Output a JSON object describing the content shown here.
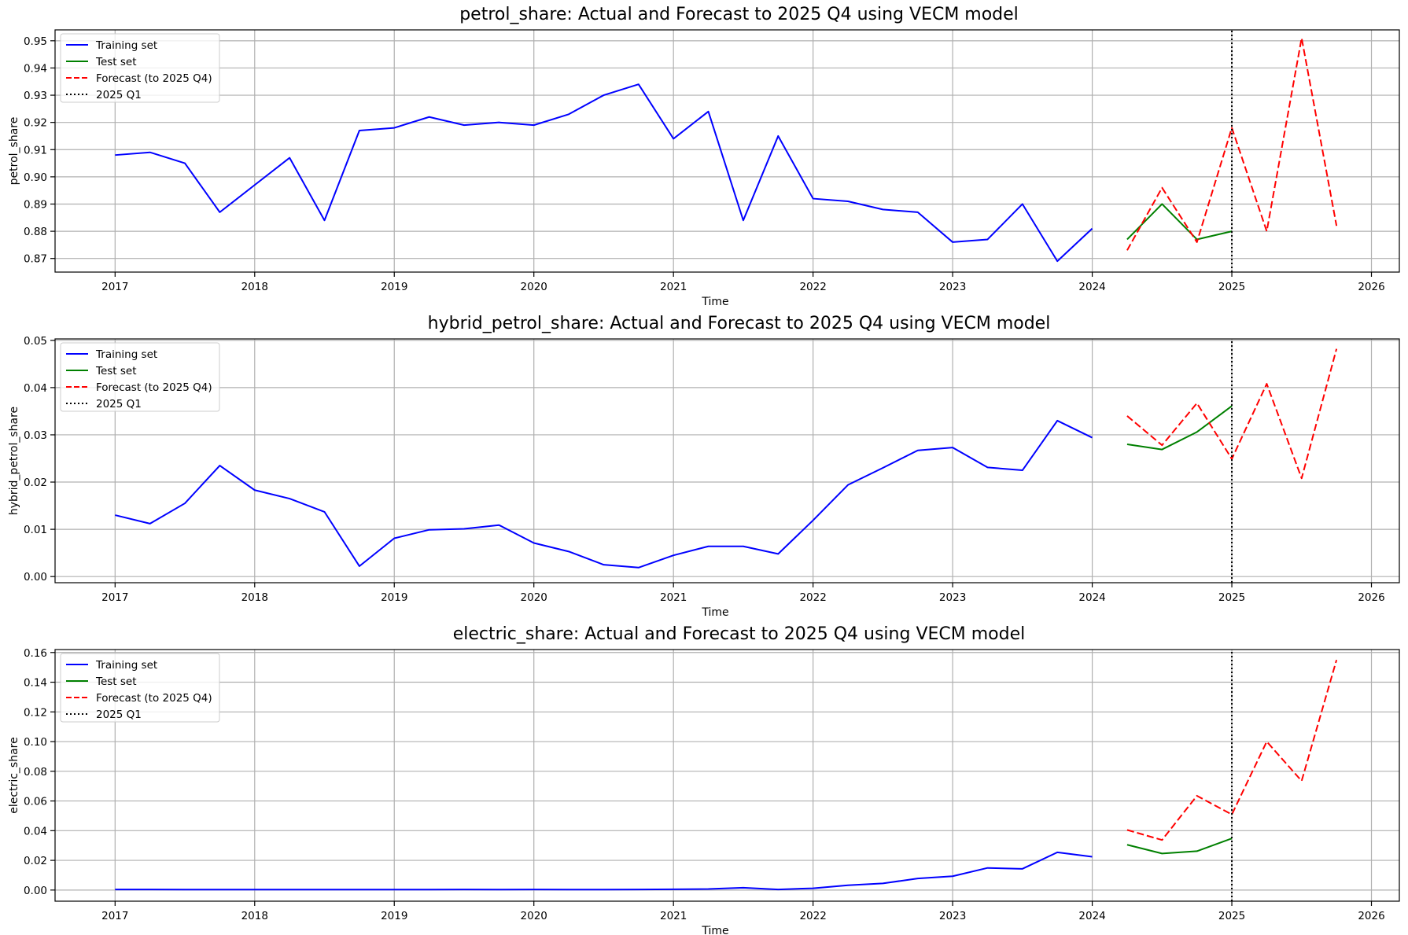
{
  "chart_data": [
    {
      "type": "line",
      "title": "petrol_share: Actual and Forecast to 2025 Q4 using VECM model",
      "xlabel": "Time",
      "ylabel": "petrol_share",
      "xlim": [
        2016.57,
        2026.2
      ],
      "ylim": [
        0.865,
        0.954
      ],
      "xticks": [
        2017,
        2018,
        2019,
        2020,
        2021,
        2022,
        2023,
        2024,
        2025,
        2026
      ],
      "yticks": [
        0.87,
        0.88,
        0.89,
        0.9,
        0.91,
        0.92,
        0.93,
        0.94,
        0.95
      ],
      "ytick_labels": [
        "0.87",
        "0.88",
        "0.89",
        "0.90",
        "0.91",
        "0.92",
        "0.93",
        "0.94",
        "0.95"
      ],
      "grid": true,
      "legend_position": "upper-left",
      "vline": 2025.0,
      "series": [
        {
          "name": "Training set",
          "color": "#0000ff",
          "style": "solid",
          "x": [
            2017.0,
            2017.25,
            2017.5,
            2017.75,
            2018.0,
            2018.25,
            2018.5,
            2018.75,
            2019.0,
            2019.25,
            2019.5,
            2019.75,
            2020.0,
            2020.25,
            2020.5,
            2020.75,
            2021.0,
            2021.25,
            2021.5,
            2021.75,
            2022.0,
            2022.25,
            2022.5,
            2022.75,
            2023.0,
            2023.25,
            2023.5,
            2023.75,
            2024.0
          ],
          "values": [
            0.908,
            0.909,
            0.905,
            0.887,
            0.897,
            0.907,
            0.884,
            0.917,
            0.918,
            0.922,
            0.919,
            0.92,
            0.919,
            0.923,
            0.93,
            0.934,
            0.914,
            0.924,
            0.884,
            0.915,
            0.892,
            0.891,
            0.888,
            0.887,
            0.876,
            0.877,
            0.89,
            0.869,
            0.881
          ]
        },
        {
          "name": "Test set",
          "color": "#008000",
          "style": "solid",
          "x": [
            2024.25,
            2024.5,
            2024.75,
            2025.0
          ],
          "values": [
            0.877,
            0.89,
            0.877,
            0.88
          ]
        },
        {
          "name": "Forecast (to 2025 Q4)",
          "color": "#ff0000",
          "style": "dashed",
          "x": [
            2024.25,
            2024.5,
            2024.75,
            2025.0,
            2025.25,
            2025.5,
            2025.75
          ],
          "values": [
            0.873,
            0.896,
            0.876,
            0.918,
            0.88,
            0.951,
            0.882
          ]
        },
        {
          "name": "2025 Q1",
          "color": "#000000",
          "style": "dotted",
          "x": [
            2025.0,
            2025.0
          ],
          "values": [
            0.865,
            0.954
          ]
        }
      ]
    },
    {
      "type": "line",
      "title": "hybrid_petrol_share: Actual and Forecast to 2025 Q4 using VECM model",
      "xlabel": "Time",
      "ylabel": "hybrid_petrol_share",
      "xlim": [
        2016.57,
        2026.2
      ],
      "ylim": [
        -0.0013,
        0.0503
      ],
      "xticks": [
        2017,
        2018,
        2019,
        2020,
        2021,
        2022,
        2023,
        2024,
        2025,
        2026
      ],
      "yticks": [
        0.0,
        0.01,
        0.02,
        0.03,
        0.04,
        0.05
      ],
      "ytick_labels": [
        "0.00",
        "0.01",
        "0.02",
        "0.03",
        "0.04",
        "0.05"
      ],
      "grid": true,
      "legend_position": "upper-left",
      "vline": 2025.0,
      "series": [
        {
          "name": "Training set",
          "color": "#0000ff",
          "style": "solid",
          "x": [
            2017.0,
            2017.25,
            2017.5,
            2017.75,
            2018.0,
            2018.25,
            2018.5,
            2018.75,
            2019.0,
            2019.25,
            2019.5,
            2019.75,
            2020.0,
            2020.25,
            2020.5,
            2020.75,
            2021.0,
            2021.25,
            2021.5,
            2021.75,
            2022.0,
            2022.25,
            2022.5,
            2022.75,
            2023.0,
            2023.25,
            2023.5,
            2023.75,
            2024.0
          ],
          "values": [
            0.013,
            0.0112,
            0.0155,
            0.0235,
            0.0183,
            0.0165,
            0.0137,
            0.0022,
            0.0081,
            0.0099,
            0.0101,
            0.0109,
            0.0071,
            0.0053,
            0.0025,
            0.0019,
            0.0045,
            0.0064,
            0.0064,
            0.0048,
            0.0119,
            0.0194,
            0.023,
            0.0267,
            0.0273,
            0.0231,
            0.0225,
            0.033,
            0.0294
          ]
        },
        {
          "name": "Test set",
          "color": "#008000",
          "style": "solid",
          "x": [
            2024.25,
            2024.5,
            2024.75,
            2025.0
          ],
          "values": [
            0.028,
            0.0269,
            0.0306,
            0.0361
          ]
        },
        {
          "name": "Forecast (to 2025 Q4)",
          "color": "#ff0000",
          "style": "dashed",
          "x": [
            2024.25,
            2024.5,
            2024.75,
            2025.0,
            2025.25,
            2025.5,
            2025.75
          ],
          "values": [
            0.034,
            0.0278,
            0.0367,
            0.0249,
            0.0408,
            0.0208,
            0.0482
          ]
        },
        {
          "name": "2025 Q1",
          "color": "#000000",
          "style": "dotted",
          "x": [
            2025.0,
            2025.0
          ],
          "values": [
            -0.0013,
            0.0503
          ]
        }
      ]
    },
    {
      "type": "line",
      "title": "electric_share: Actual and Forecast to 2025 Q4 using VECM model",
      "xlabel": "Time",
      "ylabel": "electric_share",
      "xlim": [
        2016.57,
        2026.2
      ],
      "ylim": [
        -0.0075,
        0.162
      ],
      "xticks": [
        2017,
        2018,
        2019,
        2020,
        2021,
        2022,
        2023,
        2024,
        2025,
        2026
      ],
      "yticks": [
        0.0,
        0.02,
        0.04,
        0.06,
        0.08,
        0.1,
        0.12,
        0.14,
        0.16
      ],
      "ytick_labels": [
        "0.00",
        "0.02",
        "0.04",
        "0.06",
        "0.08",
        "0.10",
        "0.12",
        "0.14",
        "0.16"
      ],
      "grid": true,
      "legend_position": "upper-left",
      "vline": 2025.0,
      "series": [
        {
          "name": "Training set",
          "color": "#0000ff",
          "style": "solid",
          "x": [
            2017.0,
            2017.25,
            2017.5,
            2017.75,
            2018.0,
            2018.25,
            2018.5,
            2018.75,
            2019.0,
            2019.25,
            2019.5,
            2019.75,
            2020.0,
            2020.25,
            2020.5,
            2020.75,
            2021.0,
            2021.25,
            2021.5,
            2021.75,
            2022.0,
            2022.25,
            2022.5,
            2022.75,
            2023.0,
            2023.25,
            2023.5,
            2023.75,
            2024.0
          ],
          "values": [
            0.0004,
            0.0004,
            0.0003,
            0.0003,
            0.0003,
            0.0003,
            0.0003,
            0.0003,
            0.0003,
            0.0003,
            0.0004,
            0.0003,
            0.0004,
            0.0003,
            0.0003,
            0.0004,
            0.0005,
            0.0007,
            0.0016,
            0.0004,
            0.0012,
            0.0032,
            0.0045,
            0.0078,
            0.0093,
            0.0149,
            0.0143,
            0.0254,
            0.0224
          ]
        },
        {
          "name": "Test set",
          "color": "#008000",
          "style": "solid",
          "x": [
            2024.25,
            2024.5,
            2024.75,
            2025.0
          ],
          "values": [
            0.0305,
            0.0246,
            0.0262,
            0.0348
          ]
        },
        {
          "name": "Forecast (to 2025 Q4)",
          "color": "#ff0000",
          "style": "dashed",
          "x": [
            2024.25,
            2024.5,
            2024.75,
            2025.0,
            2025.25,
            2025.5,
            2025.75
          ],
          "values": [
            0.0405,
            0.0337,
            0.0635,
            0.0509,
            0.1,
            0.0735,
            0.155
          ]
        },
        {
          "name": "2025 Q1",
          "color": "#000000",
          "style": "dotted",
          "x": [
            2025.0,
            2025.0
          ],
          "values": [
            -0.0075,
            0.162
          ]
        }
      ]
    }
  ]
}
